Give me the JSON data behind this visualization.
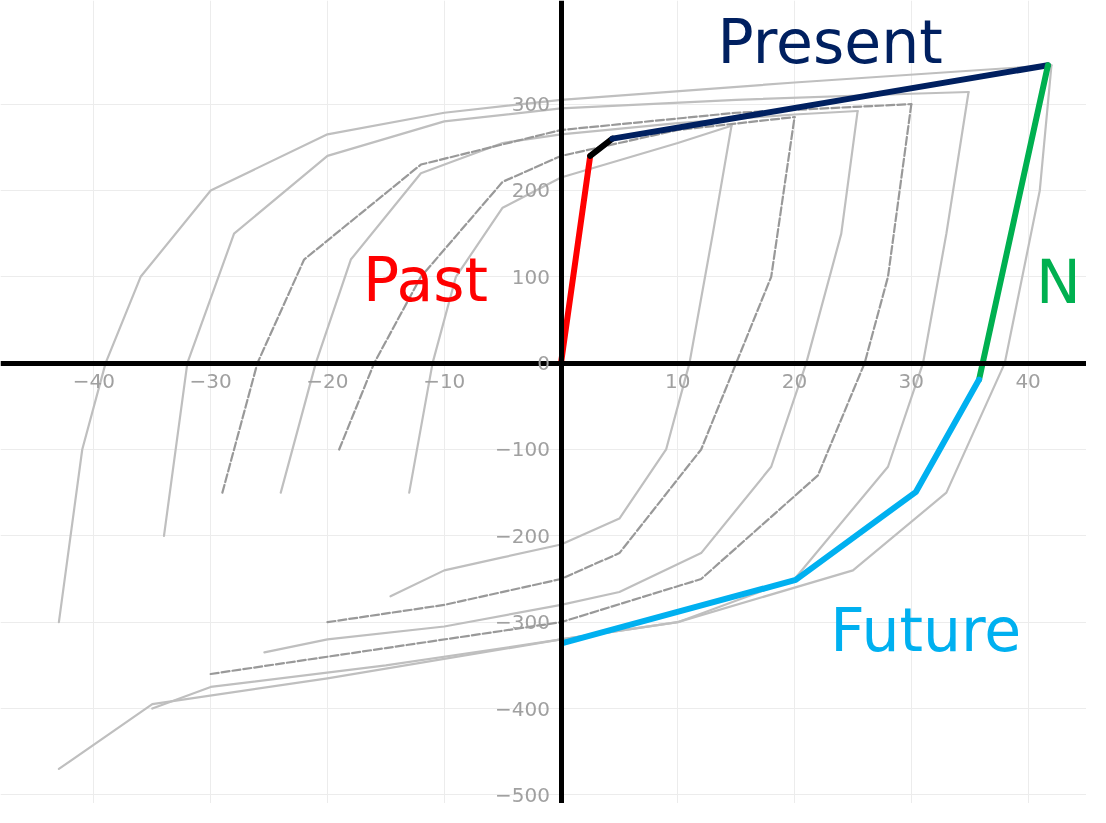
{
  "chart_data": {
    "type": "line",
    "xlim": [
      -48,
      45
    ],
    "ylim": [
      -510,
      420
    ],
    "xticks": [
      -40,
      -30,
      -20,
      -10,
      10,
      20,
      30,
      40
    ],
    "yticks": [
      -500,
      -400,
      -300,
      -200,
      -100,
      0,
      100,
      200,
      300
    ],
    "grid": true,
    "marker": "none",
    "series": [
      {
        "color": "#bfbfbf",
        "line_style": "solid",
        "x": [
          -43,
          -35,
          -20,
          0,
          10,
          25,
          33,
          38,
          41,
          42
        ],
        "values": [
          -470,
          -395,
          -365,
          -320,
          -300,
          -240,
          -150,
          0,
          200,
          345
        ]
      },
      {
        "color": "#bfbfbf",
        "line_style": "solid",
        "x": [
          -43,
          -41,
          -39,
          -36,
          -30,
          -20,
          -10,
          0,
          20,
          42
        ],
        "values": [
          -300,
          -100,
          0,
          100,
          200,
          265,
          290,
          305,
          325,
          345
        ]
      },
      {
        "color": "#bfbfbf",
        "line_style": "solid",
        "x": [
          -35,
          -30,
          -15,
          0,
          10,
          20,
          28,
          31,
          33,
          34.9
        ],
        "values": [
          -400,
          -375,
          -350,
          -320,
          -300,
          -250,
          -120,
          0,
          150,
          314
        ]
      },
      {
        "color": "#bfbfbf",
        "line_style": "solid",
        "x": [
          -34,
          -32,
          -28,
          -20,
          -10,
          0,
          15,
          30,
          34.9
        ],
        "values": [
          -200,
          0,
          150,
          240,
          280,
          295,
          305,
          312,
          314
        ]
      },
      {
        "color": "#bfbfbf",
        "line_style": "solid",
        "x": [
          -25.4,
          -20,
          -10,
          0,
          5,
          12,
          18,
          21,
          24,
          25.4
        ],
        "values": [
          -335,
          -320,
          -305,
          -280,
          -265,
          -220,
          -120,
          0,
          150,
          292
        ]
      },
      {
        "color": "#bfbfbf",
        "line_style": "solid",
        "x": [
          -24,
          -21,
          -18,
          -12,
          -5,
          0,
          10,
          20,
          25.4
        ],
        "values": [
          -150,
          0,
          120,
          220,
          255,
          265,
          278,
          288,
          292
        ]
      },
      {
        "color": "#bfbfbf",
        "line_style": "solid",
        "x": [
          -14.6,
          -10,
          -5,
          0,
          5,
          9,
          11,
          13,
          14.6
        ],
        "values": [
          -270,
          -240,
          -225,
          -210,
          -180,
          -100,
          0,
          150,
          275
        ]
      },
      {
        "color": "#bfbfbf",
        "line_style": "solid",
        "x": [
          -13,
          -11,
          -9,
          -5,
          0,
          5,
          10,
          14.6
        ],
        "values": [
          -150,
          0,
          100,
          180,
          215,
          235,
          255,
          275
        ]
      },
      {
        "color": "#999999",
        "line_style": "dashed",
        "x": [
          -30,
          -15,
          0,
          12,
          22,
          26,
          28,
          30
        ],
        "values": [
          -360,
          -330,
          -300,
          -250,
          -130,
          0,
          100,
          300
        ]
      },
      {
        "color": "#999999",
        "line_style": "dashed",
        "x": [
          -29,
          -26,
          -22,
          -12,
          0,
          15,
          30
        ],
        "values": [
          -150,
          0,
          120,
          230,
          270,
          290,
          300
        ]
      },
      {
        "color": "#999999",
        "line_style": "dashed",
        "x": [
          -20,
          -10,
          0,
          5,
          12,
          15,
          18,
          20
        ],
        "values": [
          -300,
          -280,
          -250,
          -220,
          -100,
          0,
          100,
          285
        ]
      },
      {
        "color": "#999999",
        "line_style": "dashed",
        "x": [
          -19,
          -16,
          -12,
          -5,
          0,
          10,
          20
        ],
        "values": [
          -100,
          0,
          100,
          210,
          240,
          270,
          285
        ]
      },
      {
        "name": "Past",
        "color": "#ff0000",
        "line_style": "solid",
        "x": [
          0,
          2.5
        ],
        "values": [
          0,
          240
        ]
      },
      {
        "color": "#000000",
        "line_style": "solid",
        "x": [
          2.5,
          4.4
        ],
        "values": [
          240,
          260
        ]
      },
      {
        "name": "Present",
        "color": "#002060",
        "line_style": "solid",
        "x": [
          4.4,
          41.7
        ],
        "values": [
          260,
          345
        ]
      },
      {
        "name": "N",
        "color": "#00b050",
        "line_style": "solid",
        "x": [
          41.7,
          35.8
        ],
        "values": [
          345,
          -19
        ]
      },
      {
        "name": "Future",
        "color": "#00b0f0",
        "line_style": "solid",
        "x": [
          35.8,
          30.4,
          20.1,
          0.2
        ],
        "values": [
          -19,
          -149,
          -251,
          -324
        ]
      }
    ]
  }
}
